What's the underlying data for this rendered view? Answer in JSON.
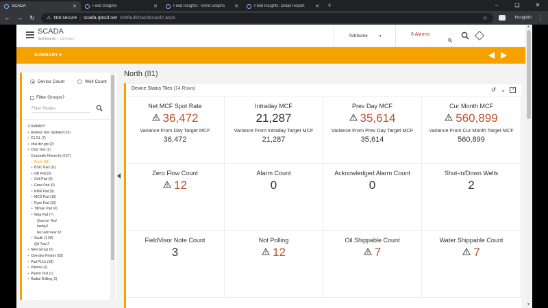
{
  "browser": {
    "tabs": [
      {
        "label": "SCADA",
        "active": true
      },
      {
        "label": "Field Insights",
        "active": false
      },
      {
        "label": "Field Insights: Trend Graphs",
        "active": false
      },
      {
        "label": "Field Insights: Detail Report",
        "active": false
      }
    ],
    "new_tab": "+",
    "security_label": "Not secure",
    "url_host": "scada.qbsol.net",
    "url_path": "/Default/Dashboard2.aspx",
    "incognito_label": "Incognito"
  },
  "header": {
    "title": "SCADA",
    "breadcrumb_root": "dashboards",
    "breadcrumb_current": "summary",
    "user": "fs\\bhume",
    "alarms": "8 Alarms"
  },
  "toolbar": {
    "view_label": "SUMMARY"
  },
  "sidebar": {
    "radio_device": "Device Count",
    "radio_well": "Well Count",
    "selected": "Device Count",
    "filter_groups": "Filter Groups?",
    "filter_placeholder": "Filter Nodes",
    "tree": [
      {
        "label": "COMPANY",
        "level": "lvl1",
        "exp": "-"
      },
      {
        "label": "Andrew Test Updated (10)",
        "level": "lvl2",
        "exp": "+"
      },
      {
        "label": "C1 GL (7)",
        "level": "lvl2",
        "exp": "+"
      },
      {
        "label": "chai def grp (2)",
        "level": "lvl2",
        "exp": "+"
      },
      {
        "label": "Char Test (1)",
        "level": "lvl2",
        "exp": "+"
      },
      {
        "label": "Corporate Hierarchy (157)",
        "level": "lvl2",
        "exp": "-"
      },
      {
        "label": "North (81)",
        "level": "lvl3",
        "exp": "-",
        "active": true
      },
      {
        "label": "BSIC Pad (11)",
        "level": "lvl3",
        "exp": "+",
        "indent": true
      },
      {
        "label": "GB Pad (8)",
        "level": "lvl3",
        "exp": "+",
        "indent": true
      },
      {
        "label": "Grill Pad (9)",
        "level": "lvl3",
        "exp": "+",
        "indent": true
      },
      {
        "label": "Grow Pad (6)",
        "level": "lvl3",
        "exp": "+",
        "indent": true
      },
      {
        "label": "KMR Pad (9)",
        "level": "lvl3",
        "exp": "+",
        "indent": true
      },
      {
        "label": "MCD Pad (10)",
        "level": "lvl3",
        "exp": "+",
        "indent": true
      },
      {
        "label": "Ryze Pad (12)",
        "level": "lvl3",
        "exp": "+",
        "indent": true
      },
      {
        "label": "Tillman Pad (6)",
        "level": "lvl3",
        "exp": "+",
        "indent": true
      },
      {
        "label": "Wag Pad (7)",
        "level": "lvl3",
        "exp": "+",
        "indent": true
      },
      {
        "label": "Quorum Test",
        "level": "lvl3-leaf",
        "exp": ""
      },
      {
        "label": "barley1",
        "level": "lvl3-leaf",
        "exp": ""
      },
      {
        "label": "test add new 10",
        "level": "lvl3-leaf",
        "exp": ""
      },
      {
        "label": "South (1 00)",
        "level": "lvl3",
        "exp": "+"
      },
      {
        "label": "QA Test 2",
        "level": "lvl2-leaf",
        "exp": ""
      },
      {
        "label": "New Group (5)",
        "level": "lvl2",
        "exp": "+"
      },
      {
        "label": "Operator Routes (83)",
        "level": "lvl2",
        "exp": "+"
      },
      {
        "label": "Pad PLCs (18)",
        "level": "lvl2",
        "exp": "+"
      },
      {
        "label": "Paloma (1)",
        "level": "lvl2",
        "exp": "+"
      },
      {
        "label": "Parent Test (1)",
        "level": "lvl2",
        "exp": "+"
      },
      {
        "label": "Radial Drilling (3)",
        "level": "lvl2",
        "exp": "+"
      }
    ]
  },
  "main": {
    "region_name": "North",
    "region_count": "(81)",
    "panel_title": "Device Status Tiles",
    "panel_rows": "(14 Rows)",
    "tiles": [
      {
        "label": "Net MCF Spot Rate",
        "value": "36,472",
        "alert": true,
        "sub": "Variance From Day Target MCF",
        "subval": "36,472"
      },
      {
        "label": "Intraday MCF",
        "value": "21,287",
        "alert": false,
        "sub": "Variance From Intraday Target MCF",
        "subval": "21,287"
      },
      {
        "label": "Prev Day MCF",
        "value": "35,614",
        "alert": true,
        "sub": "Variance From Prev Day Target MCF",
        "subval": "35,614"
      },
      {
        "label": "Cur Month MCF",
        "value": "560,899",
        "alert": true,
        "sub": "Variance From Cur Month Target MCF",
        "subval": "560,899"
      },
      {
        "label": "Zero Flow Count",
        "value": "12",
        "alert": true,
        "sub": "",
        "subval": ""
      },
      {
        "label": "Alarm Count",
        "value": "0",
        "alert": false,
        "sub": "",
        "subval": ""
      },
      {
        "label": "Acknowledged Alarm Count",
        "value": "0",
        "alert": false,
        "sub": "",
        "subval": ""
      },
      {
        "label": "Shut-in/Down Wells",
        "value": "2",
        "alert": false,
        "sub": "",
        "subval": ""
      },
      {
        "label": "FieldVisor Note Count",
        "value": "3",
        "alert": false,
        "sub": "",
        "subval": ""
      },
      {
        "label": "Not Polling",
        "value": "12",
        "alert": true,
        "sub": "",
        "subval": ""
      },
      {
        "label": "Oil Shippable Count",
        "value": "7",
        "alert": true,
        "sub": "",
        "subval": ""
      },
      {
        "label": "Water Shippable Count",
        "value": "7",
        "alert": true,
        "sub": "",
        "subval": ""
      }
    ]
  },
  "colors": {
    "accent": "#f5a100",
    "alert": "#c0502b",
    "alarm_text": "#c0392b"
  }
}
